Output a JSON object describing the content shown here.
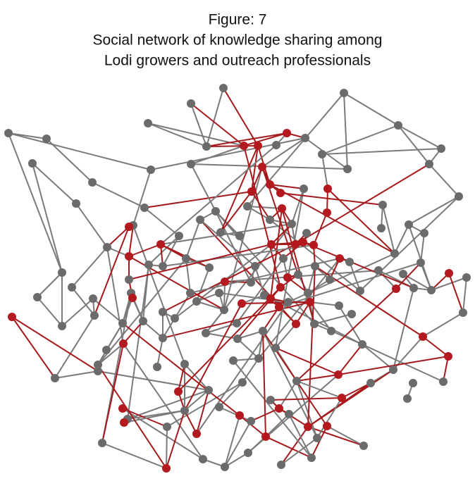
{
  "title": [
    "Figure: 7",
    "Social network of knowledge sharing among",
    "Lodi growers and outreach professionals"
  ]
}
